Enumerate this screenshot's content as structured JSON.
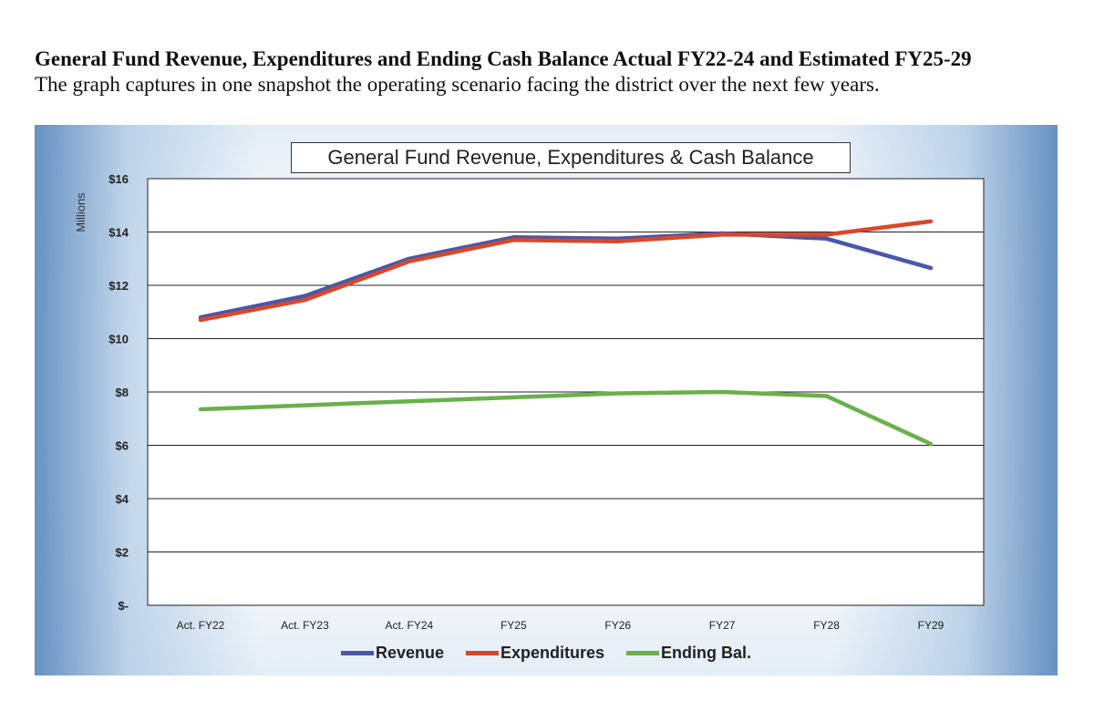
{
  "document": {
    "heading": "General Fund Revenue, Expenditures and Ending Cash Balance Actual FY22-24 and Estimated FY25-29",
    "subheading": "The graph captures in one snapshot the operating scenario facing the district over the next few years."
  },
  "chart_data": {
    "type": "line",
    "title": "General Fund Revenue, Expenditures & Cash Balance",
    "xlabel": "",
    "ylabel": "Millions",
    "categories": [
      "Act. FY22",
      "Act. FY23",
      "Act. FY24",
      "FY25",
      "FY26",
      "FY27",
      "FY28",
      "FY29"
    ],
    "ylim": [
      0,
      16
    ],
    "yticks": [
      0,
      2,
      4,
      6,
      8,
      10,
      12,
      14,
      16
    ],
    "ytick_labels": [
      "$-",
      "$2",
      "$4",
      "$6",
      "$8",
      "$10",
      "$12",
      "$14",
      "$16"
    ],
    "grid": true,
    "legend_position": "bottom",
    "series": [
      {
        "name": "Revenue",
        "color": "#4a57a8",
        "values": [
          10.8,
          11.6,
          13.0,
          13.8,
          13.75,
          13.95,
          13.75,
          12.65
        ]
      },
      {
        "name": "Expenditures",
        "color": "#d9472b",
        "values": [
          10.7,
          11.45,
          12.9,
          13.7,
          13.65,
          13.9,
          13.9,
          14.4
        ]
      },
      {
        "name": "Ending Bal.",
        "color": "#6ab04c",
        "values": [
          7.35,
          7.5,
          7.65,
          7.8,
          7.95,
          8.0,
          7.85,
          6.05
        ]
      }
    ]
  }
}
